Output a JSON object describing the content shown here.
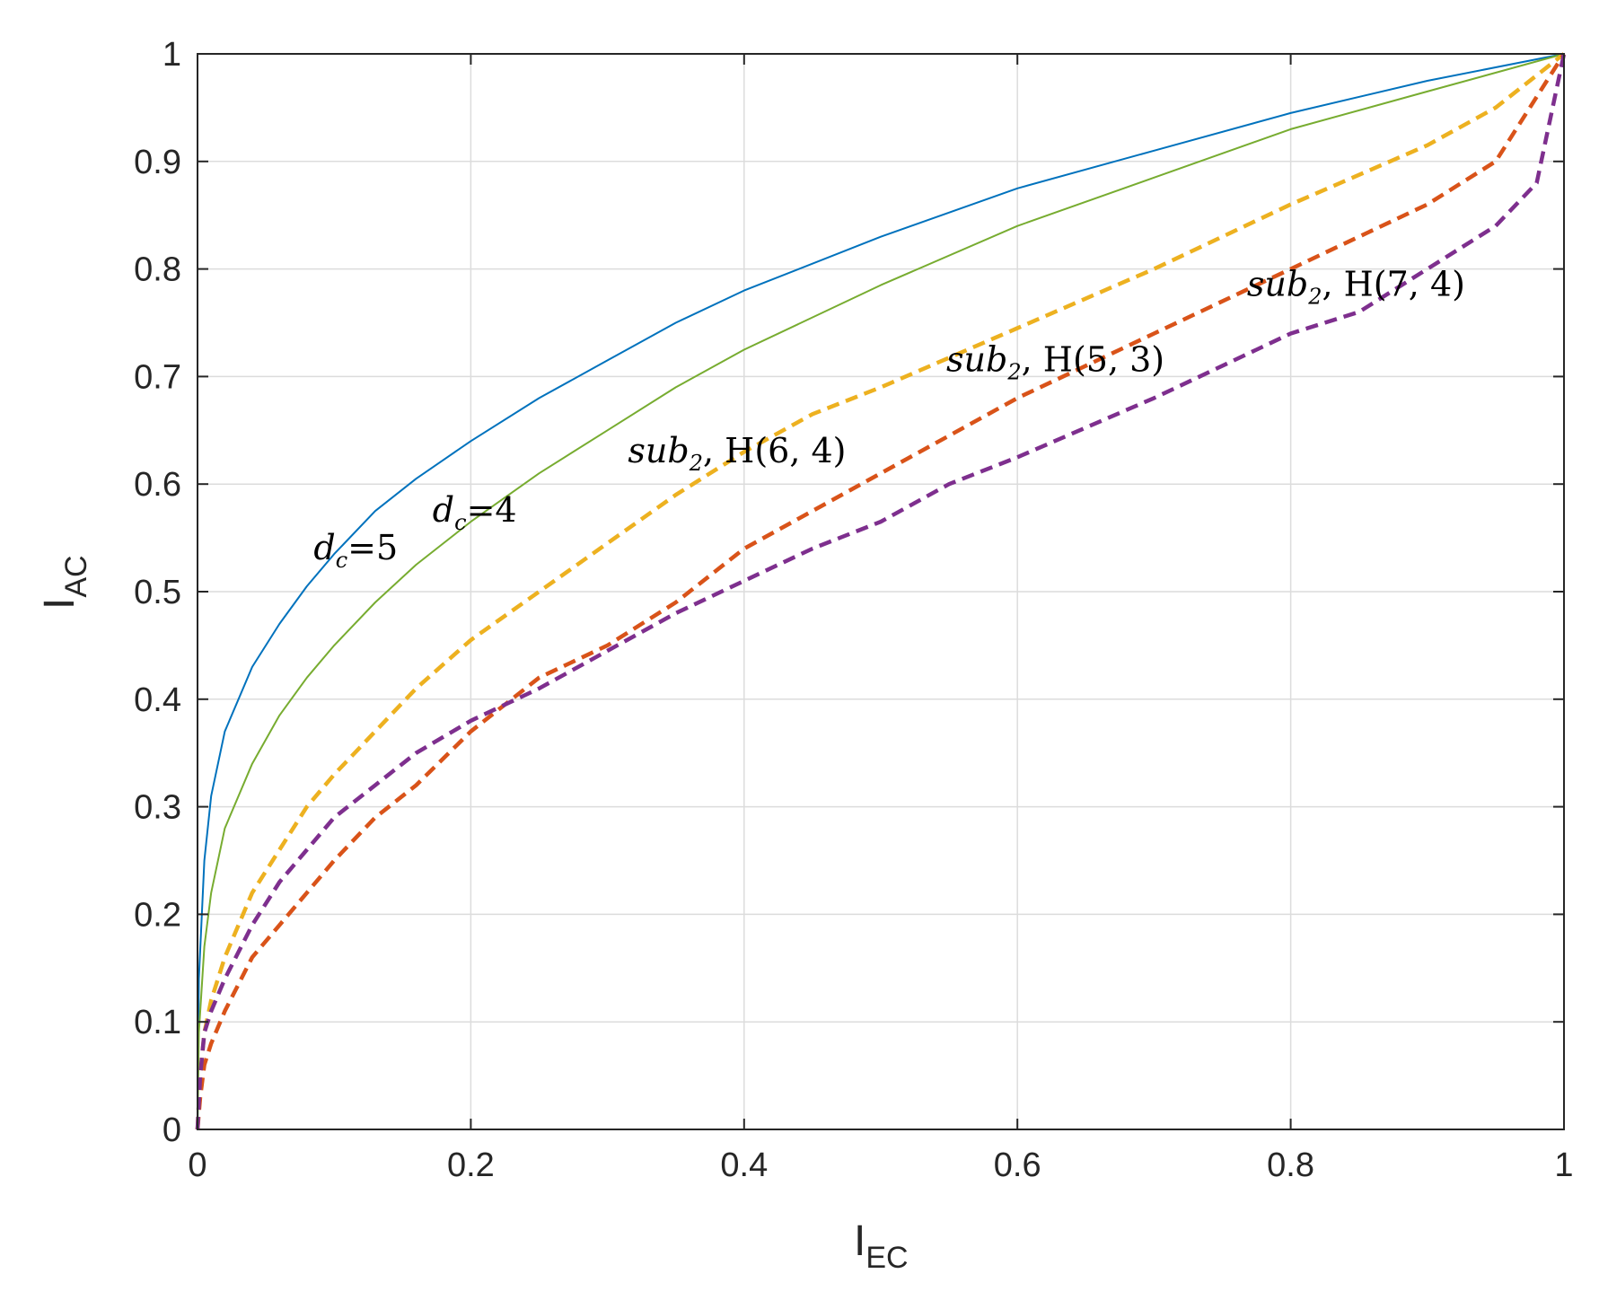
{
  "chart_data": {
    "type": "line",
    "xlabel": "I",
    "xlabel_sub": "EC",
    "ylabel": "I",
    "ylabel_sub": "AC",
    "xlim": [
      0,
      1
    ],
    "ylim": [
      0,
      1
    ],
    "xticks": [
      0,
      0.2,
      0.4,
      0.6,
      0.8,
      1
    ],
    "xtick_labels": [
      "0",
      "0.2",
      "0.4",
      "0.6",
      "0.8",
      "1"
    ],
    "yticks": [
      0,
      0.1,
      0.2,
      0.3,
      0.4,
      0.5,
      0.6,
      0.7,
      0.8,
      0.9,
      1
    ],
    "ytick_labels": [
      "0",
      "0.1",
      "0.2",
      "0.3",
      "0.4",
      "0.5",
      "0.6",
      "0.7",
      "0.8",
      "0.9",
      "1"
    ],
    "grid": true,
    "series": [
      {
        "name": "d_c=5",
        "color": "#0072bd",
        "style": "solid",
        "x": [
          0,
          0.001,
          0.005,
          0.01,
          0.02,
          0.04,
          0.06,
          0.08,
          0.1,
          0.13,
          0.16,
          0.2,
          0.25,
          0.3,
          0.35,
          0.4,
          0.5,
          0.6,
          0.7,
          0.8,
          0.9,
          1.0
        ],
        "y": [
          0,
          0.14,
          0.25,
          0.31,
          0.37,
          0.43,
          0.47,
          0.505,
          0.535,
          0.575,
          0.605,
          0.64,
          0.68,
          0.715,
          0.75,
          0.78,
          0.83,
          0.875,
          0.91,
          0.945,
          0.975,
          1.0
        ]
      },
      {
        "name": "d_c=4",
        "color": "#77ac30",
        "style": "solid",
        "x": [
          0,
          0.001,
          0.005,
          0.01,
          0.02,
          0.04,
          0.06,
          0.08,
          0.1,
          0.13,
          0.16,
          0.2,
          0.25,
          0.3,
          0.35,
          0.4,
          0.5,
          0.6,
          0.7,
          0.8,
          0.9,
          1.0
        ],
        "y": [
          0,
          0.09,
          0.17,
          0.22,
          0.28,
          0.34,
          0.385,
          0.42,
          0.45,
          0.49,
          0.525,
          0.565,
          0.61,
          0.65,
          0.69,
          0.725,
          0.785,
          0.84,
          0.885,
          0.93,
          0.965,
          1.0
        ]
      },
      {
        "name": "sub_2, H(6,4)",
        "color": "#edb120",
        "style": "dashed",
        "x": [
          0,
          0.002,
          0.005,
          0.01,
          0.02,
          0.04,
          0.06,
          0.08,
          0.1,
          0.13,
          0.16,
          0.2,
          0.25,
          0.3,
          0.35,
          0.4,
          0.45,
          0.5,
          0.6,
          0.7,
          0.8,
          0.9,
          0.95,
          1.0
        ],
        "y": [
          0,
          0.05,
          0.09,
          0.12,
          0.16,
          0.22,
          0.26,
          0.3,
          0.33,
          0.37,
          0.41,
          0.455,
          0.5,
          0.545,
          0.59,
          0.63,
          0.665,
          0.69,
          0.745,
          0.8,
          0.86,
          0.915,
          0.95,
          1.0
        ]
      },
      {
        "name": "sub_2, H(5,3)",
        "color": "#d95319",
        "style": "dashed",
        "x": [
          0,
          0.002,
          0.005,
          0.01,
          0.02,
          0.04,
          0.06,
          0.08,
          0.1,
          0.13,
          0.16,
          0.2,
          0.25,
          0.3,
          0.35,
          0.4,
          0.45,
          0.5,
          0.55,
          0.6,
          0.7,
          0.8,
          0.9,
          0.95,
          1.0
        ],
        "y": [
          0,
          0.03,
          0.06,
          0.08,
          0.11,
          0.16,
          0.19,
          0.22,
          0.25,
          0.29,
          0.32,
          0.37,
          0.42,
          0.45,
          0.49,
          0.54,
          0.575,
          0.61,
          0.645,
          0.68,
          0.74,
          0.8,
          0.86,
          0.9,
          1.0
        ]
      },
      {
        "name": "sub_2, H(7,4)",
        "color": "#7e2f8e",
        "style": "dashed",
        "x": [
          0,
          0.002,
          0.005,
          0.01,
          0.02,
          0.04,
          0.06,
          0.08,
          0.1,
          0.13,
          0.16,
          0.2,
          0.25,
          0.3,
          0.35,
          0.4,
          0.45,
          0.5,
          0.55,
          0.6,
          0.7,
          0.8,
          0.85,
          0.9,
          0.95,
          0.98,
          1.0
        ],
        "y": [
          0,
          0.05,
          0.09,
          0.11,
          0.14,
          0.19,
          0.23,
          0.26,
          0.29,
          0.32,
          0.35,
          0.38,
          0.41,
          0.445,
          0.48,
          0.51,
          0.54,
          0.565,
          0.6,
          0.625,
          0.68,
          0.74,
          0.76,
          0.8,
          0.84,
          0.88,
          1.0
        ]
      }
    ],
    "annotations": [
      {
        "series": "d_c=5",
        "main": "d",
        "sub": "c",
        "rest": "=5",
        "x": 0.085,
        "y": 0.53
      },
      {
        "series": "d_c=4",
        "main": "d",
        "sub": "c",
        "rest": "=4",
        "x": 0.172,
        "y": 0.565
      },
      {
        "series": "sub_2, H(6,4)",
        "main": "sub",
        "sub": "2",
        "rest": ", H(6, 4)",
        "x": 0.315,
        "y": 0.62
      },
      {
        "series": "sub_2, H(5,3)",
        "main": "sub",
        "sub": "2",
        "rest": ", H(5, 3)",
        "x": 0.548,
        "y": 0.705
      },
      {
        "series": "sub_2, H(7,4)",
        "main": "sub",
        "sub": "2",
        "rest": ", H(7, 4)",
        "x": 0.768,
        "y": 0.775
      }
    ]
  }
}
